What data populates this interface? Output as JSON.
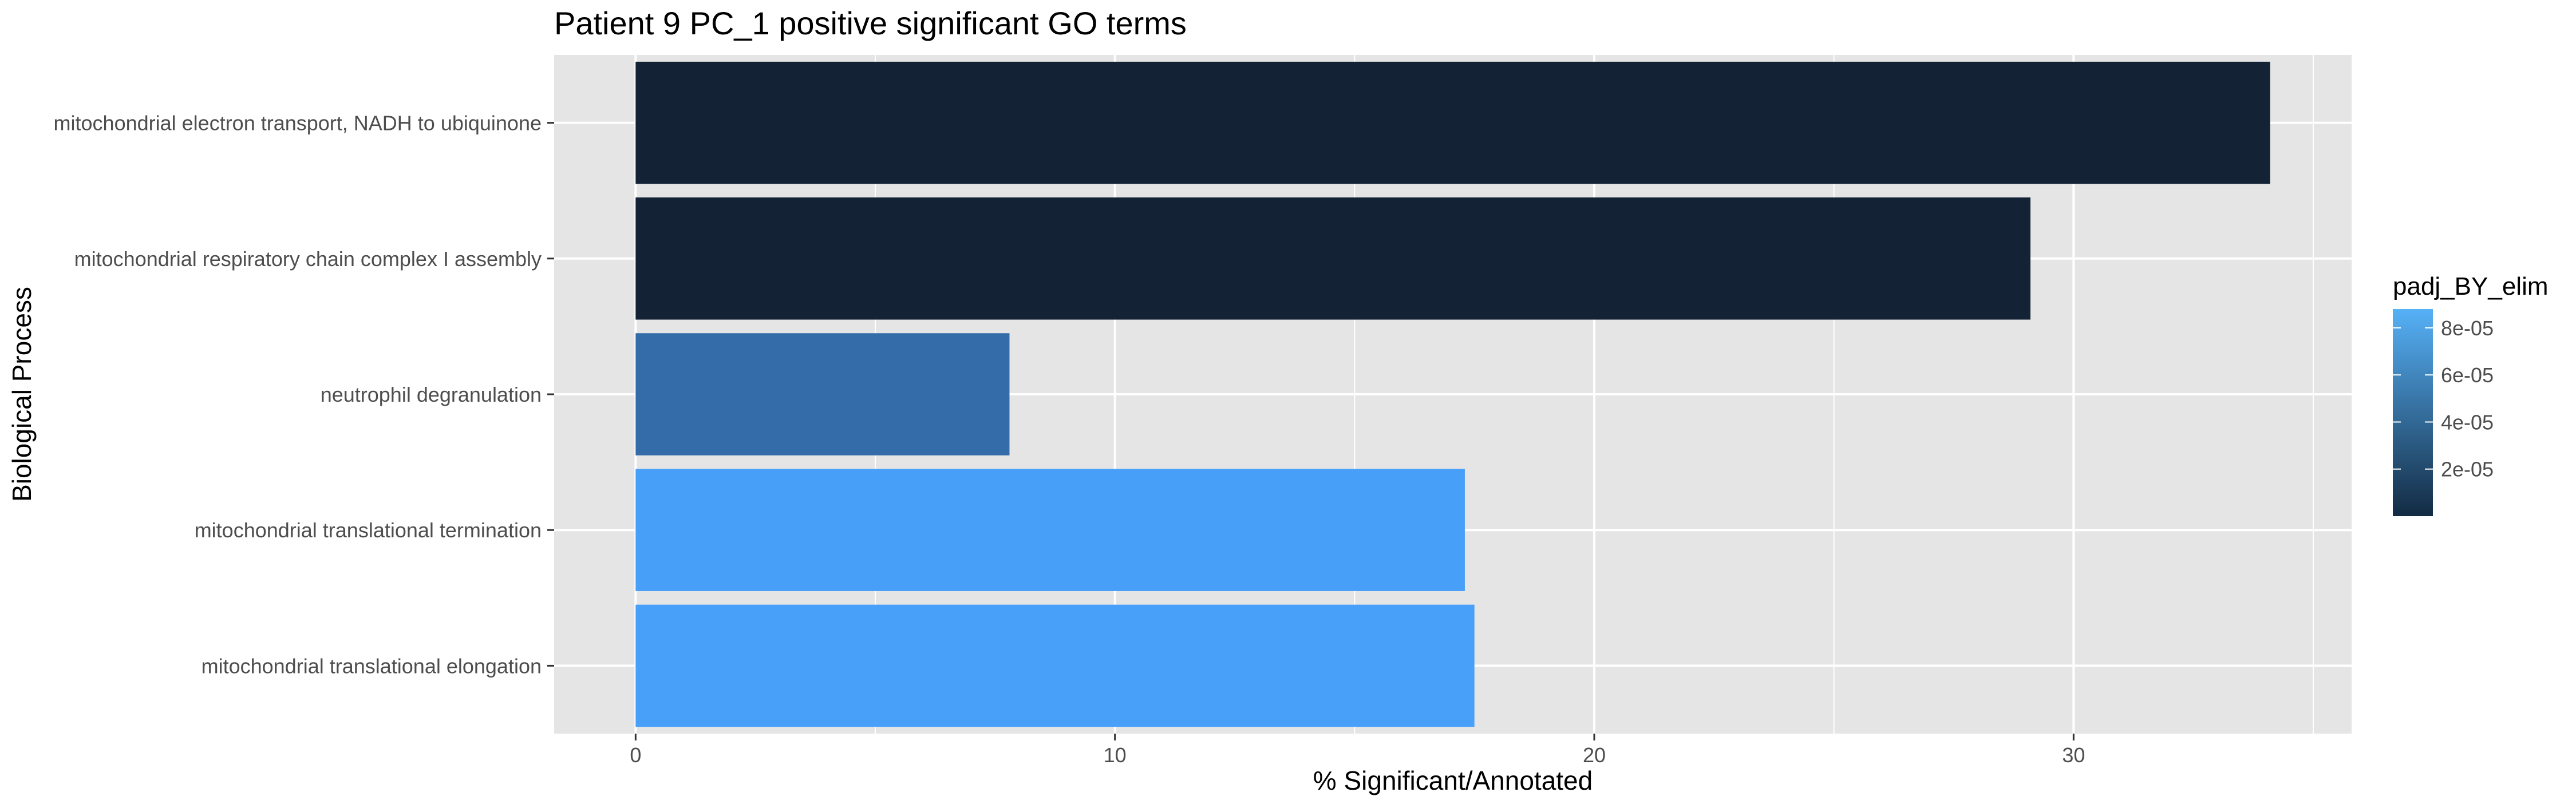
{
  "chart_data": {
    "type": "bar",
    "orientation": "horizontal",
    "title": "Patient 9 PC_1 positive significant GO terms",
    "xlabel": "% Significant/Annotated",
    "ylabel": "Biological Process",
    "xlim": [
      -1.7,
      35.8
    ],
    "x_ticks": [
      0,
      10,
      20,
      30
    ],
    "x_tick_labels": [
      "0",
      "10",
      "20",
      "30"
    ],
    "grid": true,
    "categories": [
      "mitochondrial electron transport, NADH to ubiquinone",
      "mitochondrial respiratory chain complex I assembly",
      "neutrophil degranulation",
      "mitochondrial translational termination",
      "mitochondrial translational elongation"
    ],
    "values": [
      34.1,
      29.1,
      7.8,
      17.3,
      17.5
    ],
    "fill_values": [
      1e-06,
      1e-06,
      5e-05,
      8.8e-05,
      8.8e-05
    ],
    "bar_colors": [
      "#132235",
      "#132235",
      "#336CA8",
      "#489FF8",
      "#48A0F9"
    ],
    "legend": {
      "title": "padj_BY_elim",
      "position": "right",
      "tick_values": [
        2e-05,
        4e-05,
        6e-05,
        8e-05
      ],
      "labels": [
        "2e-05",
        "4e-05",
        "6e-05",
        "8e-05"
      ],
      "range": [
        0,
        8.8e-05
      ],
      "color_low": "#132B43",
      "color_high": "#56B1F7"
    },
    "panel_background": "#E5E5E5",
    "grid_color": "#FFFFFF"
  }
}
